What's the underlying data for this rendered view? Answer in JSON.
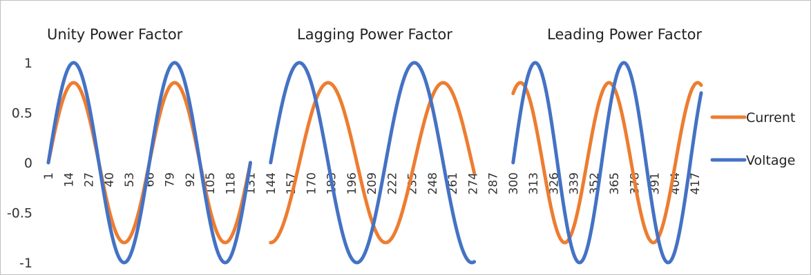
{
  "chart_data": {
    "type": "line",
    "titles": [
      "Unity Power Factor",
      "Lagging Power Factor",
      "Leading Power Factor"
    ],
    "ylim": [
      -1,
      1
    ],
    "yticks": [
      1,
      0.5,
      0,
      -0.5,
      -1
    ],
    "ytick_labels": [
      "1",
      "0.5",
      "0",
      "-0.5",
      "-1"
    ],
    "x_range": [
      1,
      421
    ],
    "x_tick_start": 1,
    "x_tick_step": 13,
    "x_ticks": [
      "1",
      "14",
      "27",
      "40",
      "53",
      "66",
      "79",
      "92",
      "105",
      "118",
      "131",
      "144",
      "157",
      "170",
      "183",
      "196",
      "209",
      "222",
      "235",
      "248",
      "261",
      "274",
      "287",
      "300",
      "313",
      "326",
      "339",
      "352",
      "365",
      "378",
      "391",
      "404",
      "417"
    ],
    "grid": false,
    "legend_position": "right",
    "segments": [
      {
        "title": "Unity Power Factor",
        "x_start": 1,
        "x_end": 131,
        "period": 65,
        "current_amplitude": 0.8,
        "voltage_amplitude": 1.0,
        "current_phase_deg": 0
      },
      {
        "title": "Lagging Power Factor",
        "x_start": 144,
        "x_end": 275,
        "period": 74,
        "current_amplitude": 0.8,
        "voltage_amplitude": 1.0,
        "current_phase_deg": -90
      },
      {
        "title": "Leading Power Factor",
        "x_start": 300,
        "x_end": 421,
        "period": 57,
        "current_amplitude": 0.8,
        "voltage_amplitude": 1.0,
        "current_phase_deg": 60
      }
    ],
    "series": [
      {
        "name": "Current",
        "color": "#ED7D31"
      },
      {
        "name": "Voltage",
        "color": "#4472C4"
      }
    ]
  }
}
